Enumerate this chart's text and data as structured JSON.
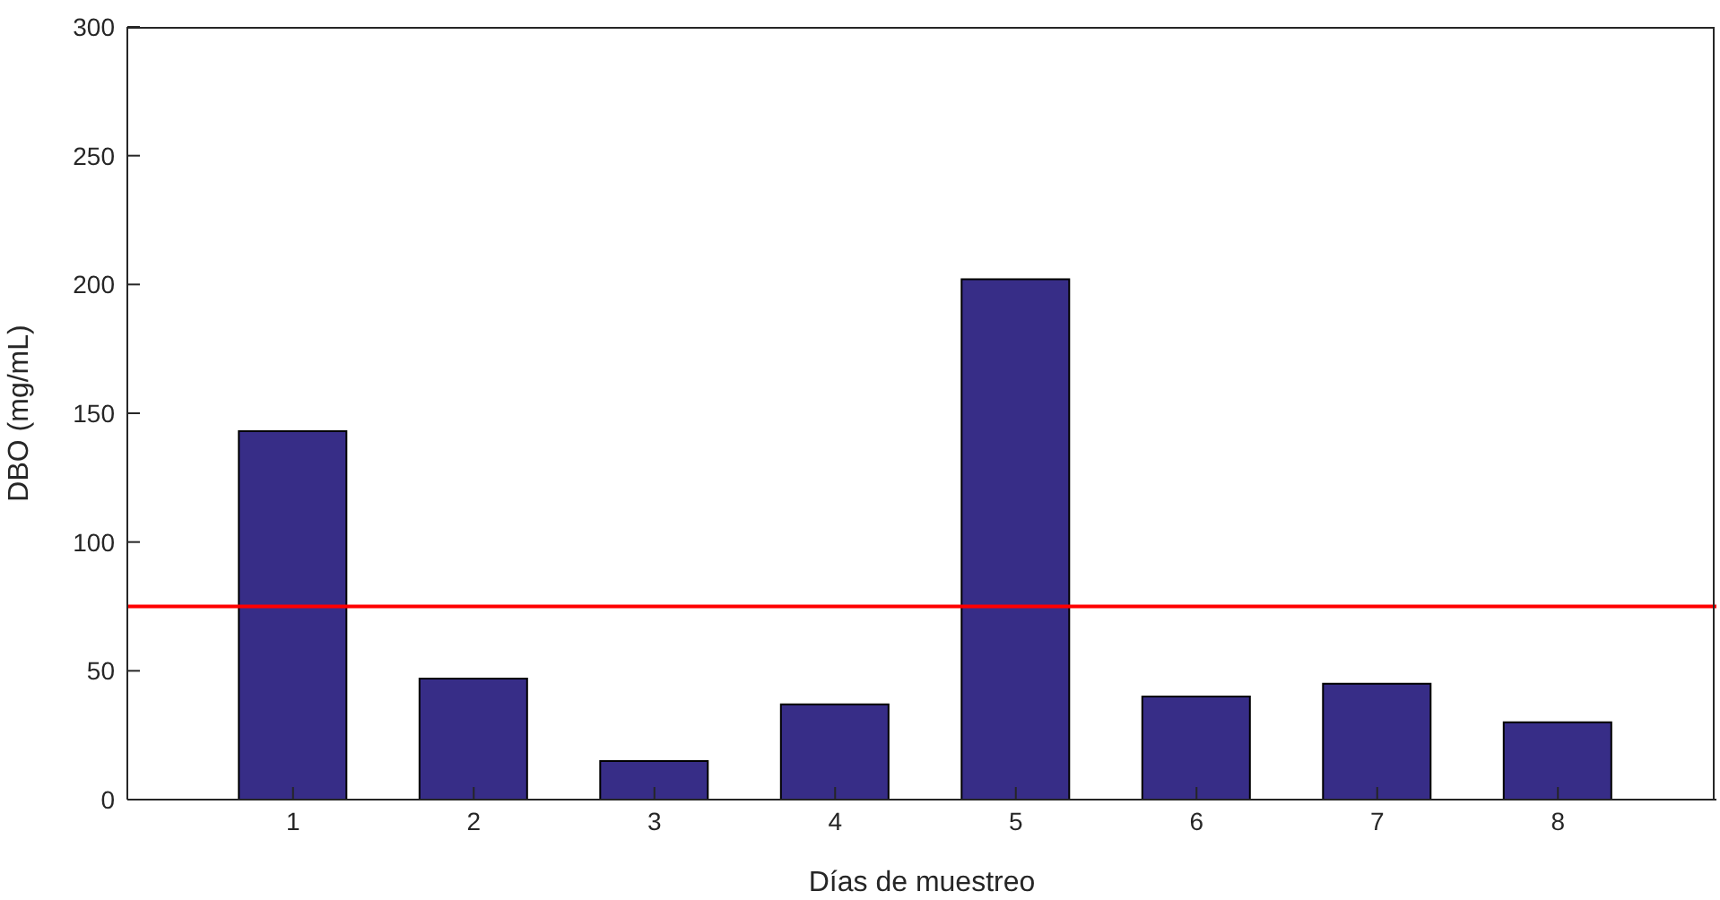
{
  "chart_data": {
    "type": "bar",
    "xlabel": "Días de muestreo",
    "ylabel": "DBO (mg/mL)",
    "categories": [
      "1",
      "2",
      "3",
      "4",
      "5",
      "6",
      "7",
      "8"
    ],
    "values": [
      143,
      47,
      15,
      37,
      202,
      40,
      45,
      30
    ],
    "color": "#372d87",
    "ylim": [
      0,
      300
    ],
    "yticks": [
      0,
      50,
      100,
      150,
      200,
      250,
      300
    ],
    "ref_lines": [
      {
        "axis": "y",
        "value": 75,
        "color": "#ff0000"
      }
    ]
  }
}
